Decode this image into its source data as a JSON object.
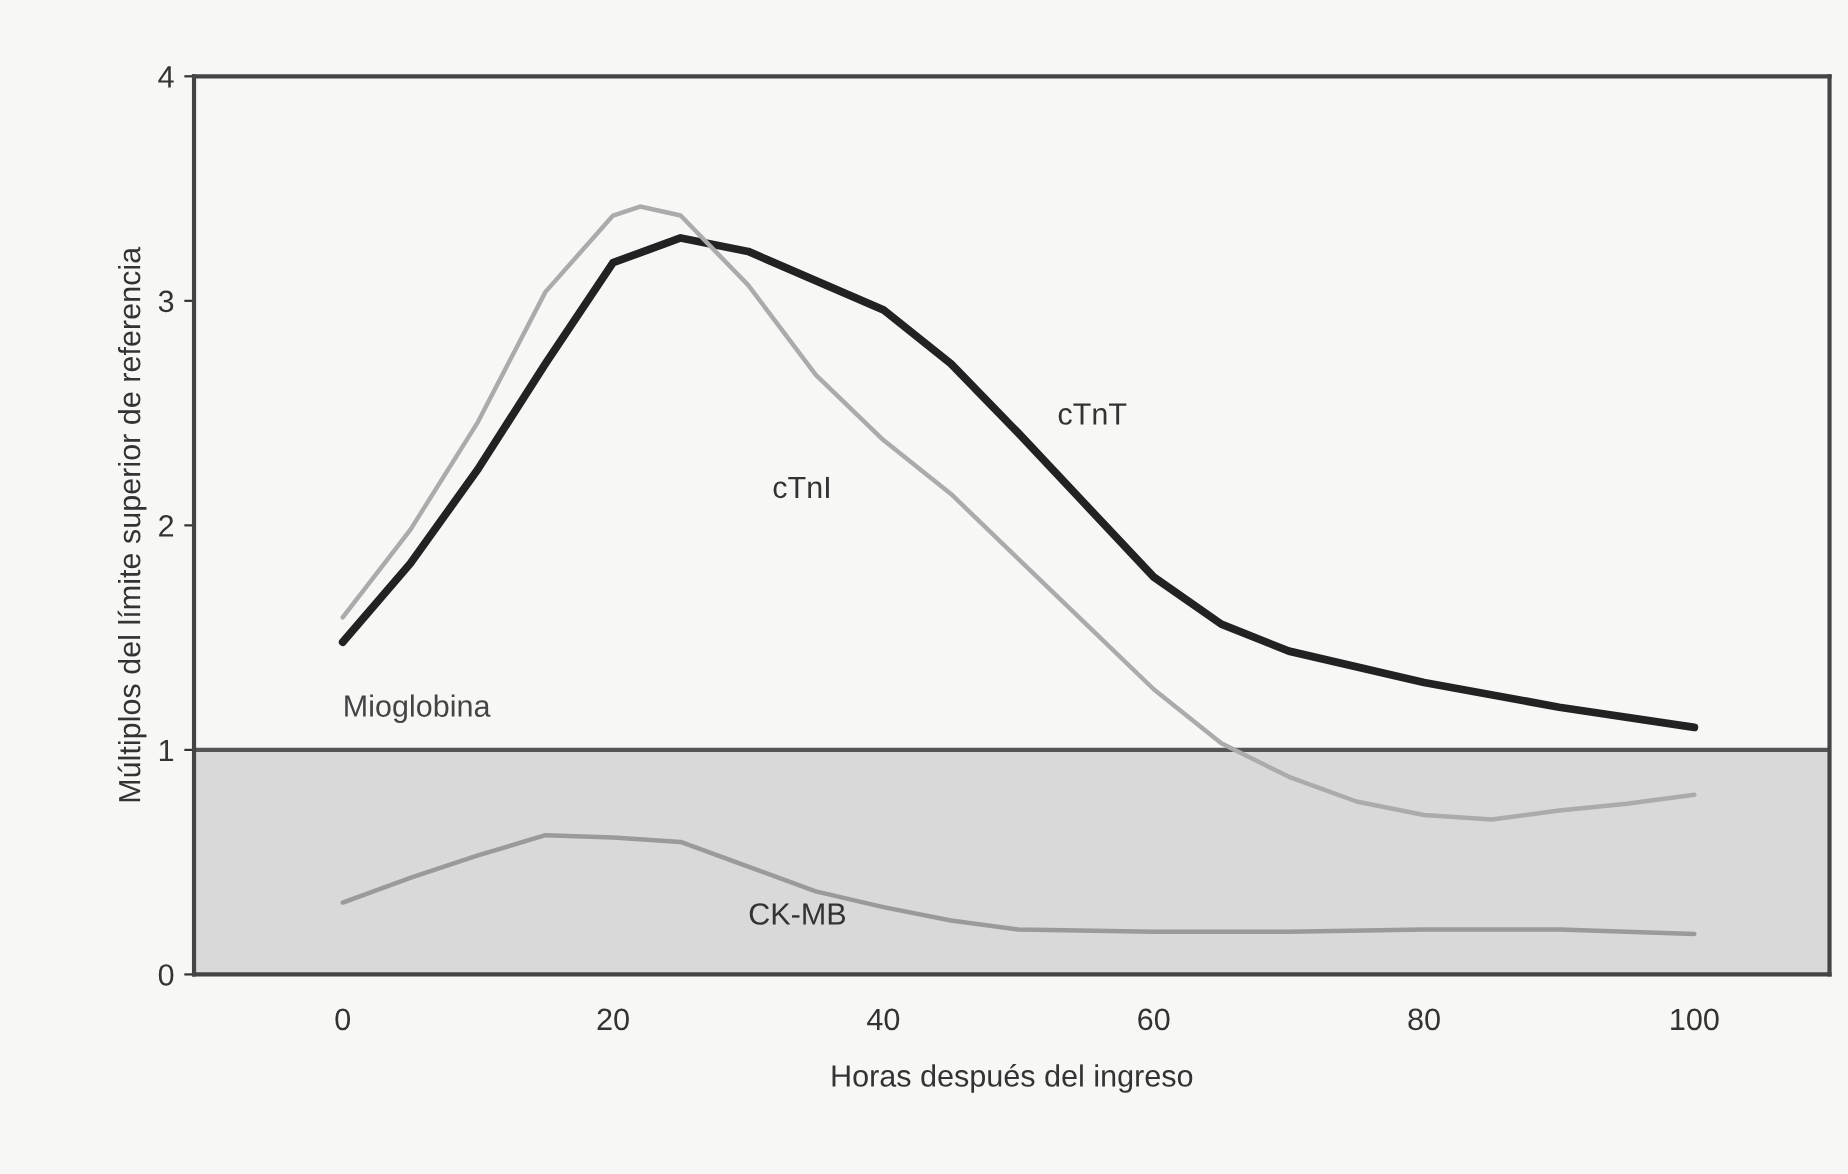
{
  "chart_data": {
    "type": "line",
    "xlabel": "Horas después del ingreso",
    "ylabel": "Múltiplos del límite superior de referencia",
    "xlim": [
      -11,
      110
    ],
    "ylim": [
      0,
      4
    ],
    "xticks": [
      0,
      20,
      40,
      60,
      80,
      100
    ],
    "yticks": [
      0,
      1,
      2,
      3,
      4
    ],
    "grid": false,
    "legend": false,
    "marker": "none",
    "line_style": "solid",
    "ref_lines": [
      {
        "axis": "y",
        "value": 1,
        "label": "Mioglobina",
        "color": "#555555"
      }
    ],
    "bands": [
      {
        "axis": "y",
        "from": 0,
        "to": 1,
        "color": "#d9d9d9"
      }
    ],
    "series": [
      {
        "name": "cTnT",
        "color": "#222222",
        "x": [
          0,
          5,
          10,
          15,
          20,
          25,
          30,
          40,
          45,
          50,
          55,
          60,
          65,
          70,
          80,
          90,
          100
        ],
        "values": [
          1.48,
          1.83,
          2.25,
          2.72,
          3.17,
          3.28,
          3.22,
          2.96,
          2.72,
          2.41,
          2.09,
          1.77,
          1.56,
          1.44,
          1.3,
          1.19,
          1.1
        ]
      },
      {
        "name": "cTnI",
        "color": "#ababab",
        "x": [
          0,
          5,
          10,
          15,
          20,
          22,
          25,
          30,
          35,
          40,
          45,
          50,
          55,
          60,
          65,
          70,
          75,
          80,
          85,
          90,
          95,
          100
        ],
        "values": [
          1.59,
          1.98,
          2.46,
          3.04,
          3.38,
          3.42,
          3.38,
          3.07,
          2.67,
          2.38,
          2.14,
          1.85,
          1.56,
          1.27,
          1.03,
          0.88,
          0.77,
          0.71,
          0.69,
          0.73,
          0.76,
          0.8
        ]
      },
      {
        "name": "CK-MB",
        "color": "#9a9a9a",
        "x": [
          0,
          5,
          10,
          15,
          20,
          25,
          30,
          35,
          40,
          45,
          50,
          60,
          70,
          80,
          90,
          100
        ],
        "values": [
          0.32,
          0.43,
          0.53,
          0.62,
          0.61,
          0.59,
          0.48,
          0.37,
          0.3,
          0.24,
          0.2,
          0.19,
          0.19,
          0.2,
          0.2,
          0.18
        ]
      }
    ]
  }
}
